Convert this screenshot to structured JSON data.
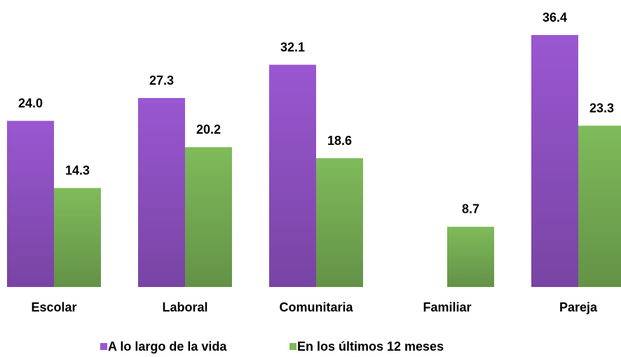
{
  "chart_data": {
    "type": "bar",
    "categories": [
      "Escolar",
      "Laboral",
      "Comunitaria",
      "Familiar",
      "Pareja"
    ],
    "series": [
      {
        "name": "A lo largo de la vida",
        "color": "#9a57d1",
        "values": [
          24.0,
          27.3,
          32.1,
          null,
          36.4
        ],
        "value_labels": [
          "24.0",
          "27.3",
          "32.1",
          null,
          "36.4"
        ]
      },
      {
        "name": "En los últimos 12 meses",
        "color": "#7fbb5a",
        "values": [
          14.3,
          20.2,
          18.6,
          8.7,
          23.3
        ],
        "value_labels": [
          "14.3",
          "20.2",
          "18.6",
          "8.7",
          "23.3"
        ]
      }
    ],
    "legend": "bottom"
  }
}
